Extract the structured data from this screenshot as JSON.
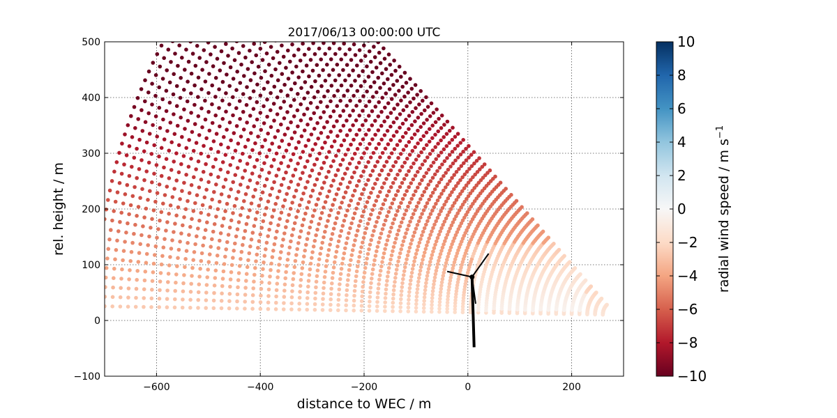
{
  "chart_data": {
    "type": "scatter",
    "title": "2017/06/13 00:00:00 UTC",
    "xlabel": "distance to WEC / m",
    "ylabel": "rel. height / m",
    "xlim": [
      -700,
      300
    ],
    "ylim": [
      -100,
      500
    ],
    "x_ticks": [
      -600,
      -400,
      -200,
      0,
      200
    ],
    "y_ticks": [
      -100,
      0,
      100,
      200,
      300,
      400,
      500
    ],
    "grid": true,
    "scan": {
      "origin_x": 285,
      "origin_y": 10,
      "range_min": 25,
      "range_max": 1000,
      "range_step": 15,
      "elevation_min_deg": 0.9,
      "elevation_max_deg": 47,
      "elevation_step_deg": 1.0
    },
    "turbine": {
      "hub_x": 8,
      "hub_y": 78,
      "tower_base_x": 12,
      "tower_base_y": -48,
      "blade_length": 50,
      "color": "#000000"
    },
    "colorbar": {
      "label": "radial wind speed / m s",
      "label_superscript": "−1",
      "min": -10,
      "max": 10,
      "ticks": [
        10,
        8,
        6,
        4,
        2,
        0,
        -2,
        -4,
        -6,
        -8,
        -10
      ],
      "tick_labels": [
        "10",
        "8",
        "6",
        "4",
        "2",
        "0",
        "−2",
        "−4",
        "−6",
        "−8",
        "−10"
      ],
      "colormap": "RdBu",
      "stops": [
        "#67001f",
        "#b2182b",
        "#d6604d",
        "#f4a582",
        "#fddbc7",
        "#f7f7f7",
        "#d1e5f0",
        "#92c5de",
        "#4393c3",
        "#2166ac",
        "#053061"
      ]
    }
  }
}
